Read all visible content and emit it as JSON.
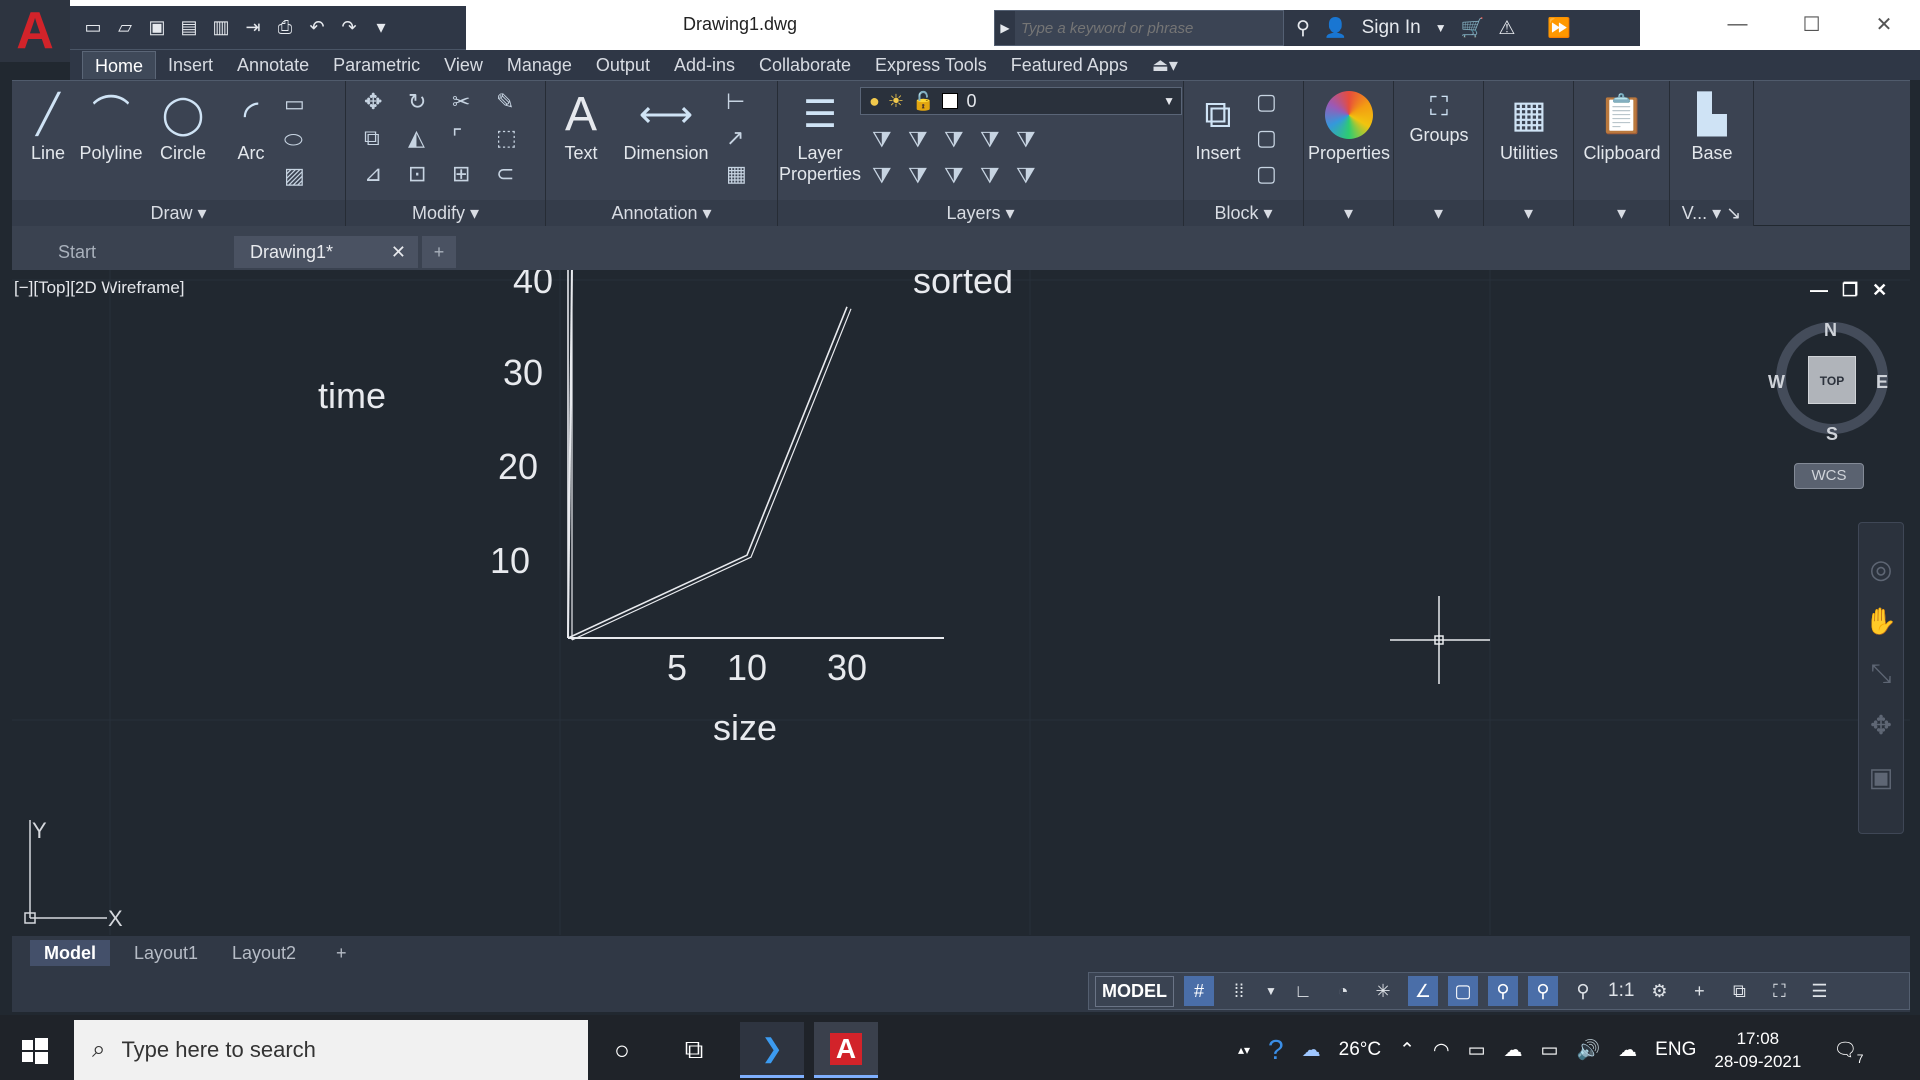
{
  "app": {
    "logo": "A",
    "document_title": "Drawing1.dwg",
    "quick_access_icons": [
      "new-icon",
      "open-icon",
      "save-icon",
      "save-as-icon",
      "publish-icon",
      "export-icon",
      "plot-icon",
      "undo-icon",
      "redo-icon",
      "customize-icon"
    ]
  },
  "search": {
    "placeholder": "Type a keyword or phrase"
  },
  "account": {
    "sign_in": "Sign In"
  },
  "menu": {
    "tabs": [
      "Home",
      "Insert",
      "Annotate",
      "Parametric",
      "View",
      "Manage",
      "Output",
      "Add-ins",
      "Collaborate",
      "Express Tools",
      "Featured Apps"
    ],
    "active": "Home"
  },
  "ribbon": {
    "draw": {
      "label": "Draw",
      "tools": [
        "Line",
        "Polyline",
        "Circle",
        "Arc"
      ]
    },
    "modify": {
      "label": "Modify"
    },
    "annotation": {
      "label": "Annotation",
      "tools": [
        "Text",
        "Dimension"
      ]
    },
    "layer_properties": {
      "line1": "Layer",
      "line2": "Properties"
    },
    "layers": {
      "label": "Layers",
      "current_layer": "0"
    },
    "block": {
      "label": "Block",
      "insert": "Insert"
    },
    "properties": "Properties",
    "groups": "Groups",
    "utilities": "Utilities",
    "clipboard": "Clipboard",
    "view": {
      "base": "Base",
      "label": "V..."
    }
  },
  "file_tabs": {
    "start": "Start",
    "drawing": "Drawing1*"
  },
  "viewport": {
    "label": "[−][Top][2D Wireframe]",
    "ucs": {
      "x": "X",
      "y": "Y"
    },
    "navcube": {
      "top": "TOP",
      "n": "N",
      "s": "S",
      "e": "E",
      "w": "W",
      "wcs": "WCS"
    }
  },
  "chart_data": {
    "type": "line",
    "title": "sorted",
    "xlabel": "size",
    "ylabel": "time",
    "x_ticks": [
      "5",
      "10",
      "30"
    ],
    "y_ticks": [
      "10",
      "20",
      "30",
      "40"
    ],
    "series": [
      {
        "values": [
          {
            "x": 0,
            "y": 0
          },
          {
            "x": 10,
            "y": 9
          },
          {
            "x": 30,
            "y": 36
          }
        ]
      },
      {
        "values": [
          {
            "x": 0,
            "y": 0
          },
          {
            "x": 0,
            "y": 40
          }
        ]
      }
    ],
    "grid": false,
    "color": "#e8eaee"
  },
  "layout_tabs": [
    "Model",
    "Layout1",
    "Layout2"
  ],
  "status": {
    "model": "MODEL",
    "scale": "1:1"
  },
  "taskbar": {
    "search_placeholder": "Type here to search",
    "temperature": "26°C",
    "language": "ENG",
    "time": "17:08",
    "date": "28-09-2021",
    "notifications": "7"
  }
}
